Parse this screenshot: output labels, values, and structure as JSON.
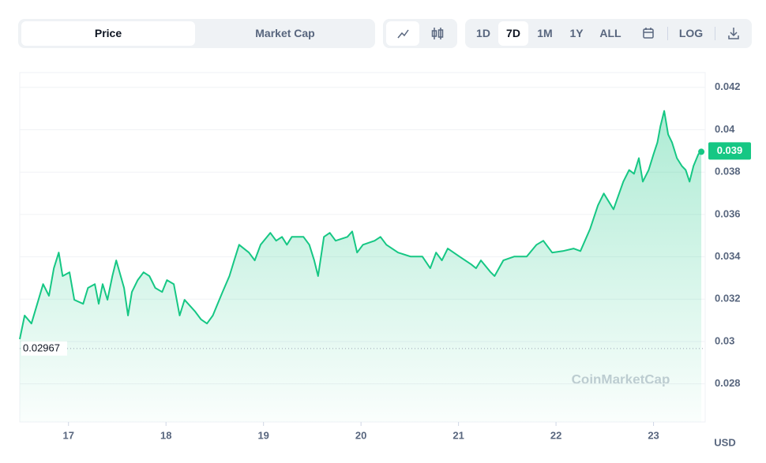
{
  "toolbar": {
    "tabs": [
      "Price",
      "Market Cap"
    ],
    "ranges": [
      "1D",
      "7D",
      "1M",
      "1Y",
      "ALL"
    ],
    "log": "LOG"
  },
  "chart_data": {
    "type": "area",
    "watermark": "CoinMarketCap",
    "currency": "USD",
    "color": "#16c784",
    "grid": true,
    "x": [
      16.5,
      16.55,
      16.62,
      16.68,
      16.74,
      16.8,
      16.85,
      16.9,
      16.94,
      17.01,
      17.06,
      17.15,
      17.2,
      17.27,
      17.31,
      17.35,
      17.4,
      17.45,
      17.49,
      17.57,
      17.61,
      17.65,
      17.71,
      17.77,
      17.83,
      17.89,
      17.96,
      18.01,
      18.08,
      18.14,
      18.19,
      18.3,
      18.36,
      18.42,
      18.48,
      18.58,
      18.65,
      18.7,
      18.75,
      18.85,
      18.91,
      18.97,
      19.07,
      19.13,
      19.19,
      19.24,
      19.29,
      19.41,
      19.47,
      19.52,
      19.56,
      19.62,
      19.68,
      19.74,
      19.86,
      19.91,
      19.96,
      20.02,
      20.14,
      20.2,
      20.26,
      20.38,
      20.51,
      20.63,
      20.71,
      20.77,
      20.83,
      20.89,
      21.01,
      21.13,
      21.18,
      21.23,
      21.33,
      21.37,
      21.46,
      21.57,
      21.7,
      21.8,
      21.87,
      21.96,
      22.07,
      22.18,
      22.25,
      22.35,
      22.43,
      22.49,
      22.59,
      22.69,
      22.75,
      22.8,
      22.85,
      22.89,
      22.95,
      23.0,
      23.04,
      23.07,
      23.11,
      23.15,
      23.19,
      23.24,
      23.29,
      23.33,
      23.37,
      23.41,
      23.46,
      23.49
    ],
    "values": [
      0.03011,
      0.03123,
      0.03085,
      0.03178,
      0.03271,
      0.03216,
      0.03346,
      0.0342,
      0.03309,
      0.03327,
      0.03197,
      0.03178,
      0.03253,
      0.03271,
      0.03178,
      0.03271,
      0.03197,
      0.03309,
      0.03383,
      0.03253,
      0.03123,
      0.03234,
      0.0329,
      0.03327,
      0.03309,
      0.03253,
      0.03234,
      0.0329,
      0.03271,
      0.03123,
      0.03197,
      0.03141,
      0.03104,
      0.03085,
      0.03123,
      0.03234,
      0.03309,
      0.03383,
      0.03457,
      0.0342,
      0.03383,
      0.03457,
      0.03513,
      0.03476,
      0.03494,
      0.03457,
      0.03494,
      0.03494,
      0.03457,
      0.03383,
      0.03309,
      0.03494,
      0.03513,
      0.03476,
      0.03494,
      0.0352,
      0.0342,
      0.03457,
      0.03476,
      0.03494,
      0.03457,
      0.0342,
      0.03401,
      0.03401,
      0.03346,
      0.0342,
      0.03383,
      0.03439,
      0.03401,
      0.03364,
      0.03346,
      0.03383,
      0.03327,
      0.03309,
      0.03383,
      0.03401,
      0.03401,
      0.03457,
      0.03476,
      0.0342,
      0.03427,
      0.03439,
      0.03427,
      0.03532,
      0.03643,
      0.03699,
      0.03624,
      0.03755,
      0.0381,
      0.03792,
      0.03866,
      0.03755,
      0.0381,
      0.03885,
      0.0394,
      0.04015,
      0.04089,
      0.03978,
      0.0394,
      0.03866,
      0.03829,
      0.0381,
      0.03755,
      0.03829,
      0.03885,
      0.03896
    ],
    "xlim": [
      16.5,
      23.53
    ],
    "xticks": [
      17,
      18,
      19,
      20,
      21,
      22,
      23
    ],
    "ylim": [
      0.0262,
      0.0427
    ],
    "yticks": [
      0.028,
      0.03,
      0.032,
      0.034,
      0.036,
      0.038,
      0.04,
      0.042
    ],
    "reference_line": 0.02967,
    "current_price": 0.039
  }
}
